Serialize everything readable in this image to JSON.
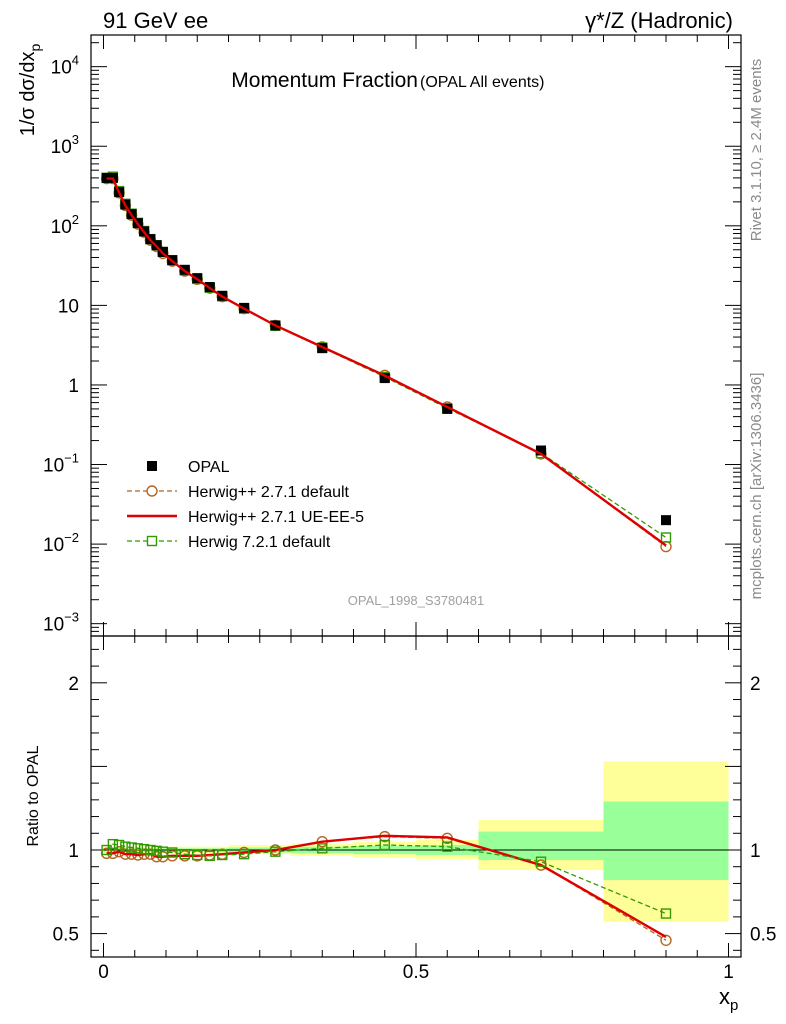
{
  "header": {
    "left": "91 GeV ee",
    "right": "γ*/Z (Hadronic)"
  },
  "side": {
    "rivet": "Rivet 3.1.10, ≥ 2.4M events",
    "mcplots": "mcplots.cern.ch [arXiv:1306.3436]"
  },
  "chart_data": [
    {
      "type": "scatter",
      "title": "Momentum Fraction",
      "subtitle": "(OPAL All events)",
      "watermark": "OPAL_1998_S3780481",
      "ylabel": "1/σ dσ/dx_p",
      "ylabel_main": "1/σ dσ/dx",
      "ylabel_sub": "p",
      "xlabel_main": "x",
      "xlabel_sub": "p",
      "yscale": "log",
      "xlim": [
        -0.02,
        1.02
      ],
      "ylim": [
        0.0007,
        25000
      ],
      "ytick_labels": [
        {
          "v": 0.001,
          "base": "10",
          "exp": "−3"
        },
        {
          "v": 0.01,
          "base": "10",
          "exp": "−2"
        },
        {
          "v": 0.1,
          "base": "10",
          "exp": "−1"
        },
        {
          "v": 1,
          "base": "1",
          "exp": ""
        },
        {
          "v": 10,
          "base": "10",
          "exp": ""
        },
        {
          "v": 100,
          "base": "10",
          "exp": "2"
        },
        {
          "v": 1000,
          "base": "10",
          "exp": "3"
        },
        {
          "v": 10000,
          "base": "10",
          "exp": "4"
        }
      ],
      "legend_position": "bottom-left",
      "series": [
        {
          "name": "OPAL",
          "color": "#000000",
          "marker": "filled-square",
          "x": [
            0.005,
            0.015,
            0.025,
            0.035,
            0.045,
            0.055,
            0.065,
            0.075,
            0.085,
            0.095,
            0.11,
            0.13,
            0.15,
            0.17,
            0.19,
            0.225,
            0.275,
            0.35,
            0.45,
            0.55,
            0.7,
            0.9
          ],
          "y": [
            400,
            400,
            265,
            185,
            140,
            108,
            85,
            68,
            57,
            47,
            37,
            28,
            22,
            17,
            13.2,
            9.3,
            5.6,
            2.9,
            1.22,
            0.5,
            0.15,
            0.02
          ]
        },
        {
          "name": "Herwig++ 2.7.1 default",
          "color": "#b5651d",
          "marker": "open-circle",
          "line": "dashed",
          "x": [
            0.005,
            0.015,
            0.025,
            0.035,
            0.045,
            0.055,
            0.065,
            0.075,
            0.085,
            0.095,
            0.11,
            0.13,
            0.15,
            0.17,
            0.19,
            0.225,
            0.275,
            0.35,
            0.45,
            0.55,
            0.7,
            0.9
          ],
          "y": [
            392,
            392,
            260,
            180,
            136,
            105,
            83,
            66,
            55,
            45,
            36,
            27,
            21.3,
            16.5,
            12.9,
            9.1,
            5.6,
            3.0,
            1.32,
            0.53,
            0.136,
            0.0093
          ]
        },
        {
          "name": "Herwig++ 2.7.1 UE-EE-5",
          "color": "#dd0000",
          "marker": "none",
          "line": "solid",
          "x": [
            0.005,
            0.015,
            0.025,
            0.035,
            0.045,
            0.055,
            0.065,
            0.075,
            0.085,
            0.095,
            0.11,
            0.13,
            0.15,
            0.17,
            0.19,
            0.225,
            0.275,
            0.35,
            0.45,
            0.55,
            0.7,
            0.9
          ],
          "y": [
            392,
            392,
            260,
            180,
            136,
            105,
            83,
            66,
            55,
            45,
            36,
            27,
            21.3,
            16.5,
            12.9,
            9.1,
            5.6,
            3.0,
            1.31,
            0.53,
            0.136,
            0.0096
          ]
        },
        {
          "name": "Herwig 7.2.1 default",
          "color": "#339900",
          "marker": "open-square",
          "line": "dashed",
          "x": [
            0.005,
            0.015,
            0.025,
            0.035,
            0.045,
            0.055,
            0.065,
            0.075,
            0.085,
            0.095,
            0.11,
            0.13,
            0.15,
            0.17,
            0.19,
            0.225,
            0.275,
            0.35,
            0.45,
            0.55,
            0.7,
            0.9
          ],
          "y": [
            400,
            414,
            273,
            189,
            142,
            109,
            86,
            68,
            57,
            47,
            37,
            27.5,
            21.5,
            16.6,
            13,
            9.1,
            5.55,
            2.95,
            1.26,
            0.51,
            0.139,
            0.0121
          ]
        }
      ]
    },
    {
      "type": "line",
      "ylabel": "Ratio to OPAL",
      "ylim": [
        0.36,
        2.28
      ],
      "xlim": [
        -0.02,
        1.02
      ],
      "xtick_labels": [
        {
          "v": 0,
          "label": "0"
        },
        {
          "v": 0.5,
          "label": "0.5"
        },
        {
          "v": 1,
          "label": "1"
        }
      ],
      "ytick_labels": [
        {
          "v": 0.5,
          "label": "0.5"
        },
        {
          "v": 1,
          "label": "1"
        },
        {
          "v": 2,
          "label": "2"
        }
      ],
      "bands": [
        {
          "x0": 0.0,
          "x1": 0.1,
          "stat_lo": 0.99,
          "stat_hi": 1.01,
          "tot_lo": 0.98,
          "tot_hi": 1.02
        },
        {
          "x0": 0.1,
          "x1": 0.2,
          "stat_lo": 0.99,
          "stat_hi": 1.01,
          "tot_lo": 0.98,
          "tot_hi": 1.02
        },
        {
          "x0": 0.2,
          "x1": 0.3,
          "stat_lo": 0.985,
          "stat_hi": 1.015,
          "tot_lo": 0.975,
          "tot_hi": 1.03
        },
        {
          "x0": 0.3,
          "x1": 0.4,
          "stat_lo": 0.98,
          "stat_hi": 1.02,
          "tot_lo": 0.965,
          "tot_hi": 1.04
        },
        {
          "x0": 0.4,
          "x1": 0.5,
          "stat_lo": 0.975,
          "stat_hi": 1.025,
          "tot_lo": 0.955,
          "tot_hi": 1.05
        },
        {
          "x0": 0.5,
          "x1": 0.6,
          "stat_lo": 0.97,
          "stat_hi": 1.03,
          "tot_lo": 0.945,
          "tot_hi": 1.06
        },
        {
          "x0": 0.6,
          "x1": 0.8,
          "stat_lo": 0.94,
          "stat_hi": 1.11,
          "tot_lo": 0.88,
          "tot_hi": 1.18
        },
        {
          "x0": 0.8,
          "x1": 1.0,
          "stat_lo": 0.82,
          "stat_hi": 1.29,
          "tot_lo": 0.57,
          "tot_hi": 1.53
        }
      ],
      "series": [
        {
          "name": "Herwig++ 2.7.1 default",
          "color": "#b5651d",
          "marker": "open-circle",
          "line": "dashed",
          "x": [
            0.005,
            0.015,
            0.025,
            0.035,
            0.045,
            0.055,
            0.065,
            0.075,
            0.085,
            0.095,
            0.11,
            0.13,
            0.15,
            0.17,
            0.19,
            0.225,
            0.275,
            0.35,
            0.45,
            0.55,
            0.7,
            0.9
          ],
          "y": [
            0.98,
            0.98,
            0.99,
            0.975,
            0.975,
            0.97,
            0.975,
            0.975,
            0.96,
            0.96,
            0.965,
            0.965,
            0.965,
            0.97,
            0.975,
            0.985,
            1.0,
            1.05,
            1.08,
            1.07,
            0.91,
            0.46
          ]
        },
        {
          "name": "Herwig++ 2.7.1 UE-EE-5",
          "color": "#dd0000",
          "marker": "none",
          "line": "solid",
          "x": [
            0.005,
            0.015,
            0.025,
            0.035,
            0.045,
            0.055,
            0.065,
            0.075,
            0.085,
            0.095,
            0.11,
            0.13,
            0.15,
            0.17,
            0.19,
            0.225,
            0.275,
            0.35,
            0.45,
            0.55,
            0.7,
            0.9
          ],
          "y": [
            0.98,
            0.98,
            0.99,
            0.975,
            0.975,
            0.97,
            0.975,
            0.975,
            0.96,
            0.96,
            0.965,
            0.965,
            0.965,
            0.97,
            0.975,
            0.985,
            1.0,
            1.05,
            1.085,
            1.075,
            0.91,
            0.48
          ]
        },
        {
          "name": "Herwig 7.2.1 default",
          "color": "#339900",
          "marker": "open-square",
          "line": "dashed",
          "x": [
            0.005,
            0.015,
            0.025,
            0.035,
            0.045,
            0.055,
            0.065,
            0.075,
            0.085,
            0.095,
            0.11,
            0.13,
            0.15,
            0.17,
            0.19,
            0.225,
            0.275,
            0.35,
            0.45,
            0.55,
            0.7,
            0.9
          ],
          "y": [
            1.0,
            1.035,
            1.03,
            1.02,
            1.015,
            1.01,
            1.005,
            1.0,
            0.995,
            0.99,
            0.985,
            0.975,
            0.97,
            0.965,
            0.97,
            0.975,
            0.99,
            1.01,
            1.03,
            1.02,
            0.93,
            0.62
          ]
        }
      ]
    }
  ]
}
